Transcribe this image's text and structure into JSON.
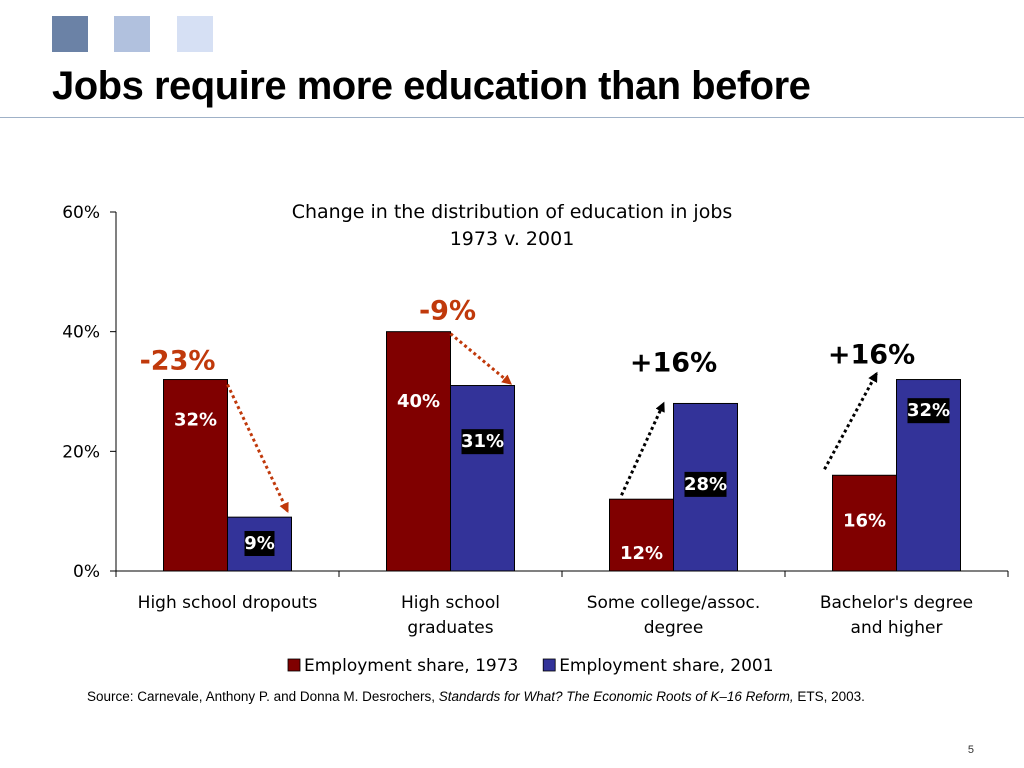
{
  "slide": {
    "title": "Jobs require more education than before",
    "page_number": "5",
    "accent_colors": [
      "#6b82a6",
      "#b1c1de",
      "#d6e0f4"
    ]
  },
  "source": {
    "prefix": "Source: Carnevale, Anthony P. and Donna M. Desrochers, ",
    "italic": "Standards for What? The Economic Roots of K–16 Reform,",
    "suffix": " ETS, 2003."
  },
  "chart_data": {
    "type": "bar",
    "title": "Change in the distribution of education in jobs",
    "subtitle": "1973 v. 2001",
    "categories": [
      [
        "High school dropouts"
      ],
      [
        "High school",
        "graduates"
      ],
      [
        "Some college/assoc.",
        "degree"
      ],
      [
        "Bachelor's degree",
        "and higher"
      ]
    ],
    "series": [
      {
        "name": "Employment share, 1973",
        "color": "#800000",
        "values": [
          32,
          40,
          12,
          16
        ],
        "labels": [
          "32%",
          "40%",
          "12%",
          "16%"
        ]
      },
      {
        "name": "Employment share, 2001",
        "color": "#333399",
        "values": [
          9,
          31,
          28,
          32
        ],
        "labels": [
          "9%",
          "31%",
          "28%",
          "32%"
        ]
      }
    ],
    "ylim": [
      0,
      60
    ],
    "yticks": [
      "0%",
      "20%",
      "40%",
      "60%"
    ],
    "ytick_values": [
      0,
      20,
      40,
      60
    ],
    "grid": false,
    "legend": "bottom",
    "annotations": [
      {
        "category": 0,
        "text": "-23%",
        "color": "#c0390b",
        "arrow": "decrease"
      },
      {
        "category": 1,
        "text": "-9%",
        "color": "#c0390b",
        "arrow": "decrease"
      },
      {
        "category": 2,
        "text": "+16%",
        "color": "#000000",
        "arrow": "increase"
      },
      {
        "category": 3,
        "text": "+16%",
        "color": "#000000",
        "arrow": "increase"
      }
    ]
  }
}
